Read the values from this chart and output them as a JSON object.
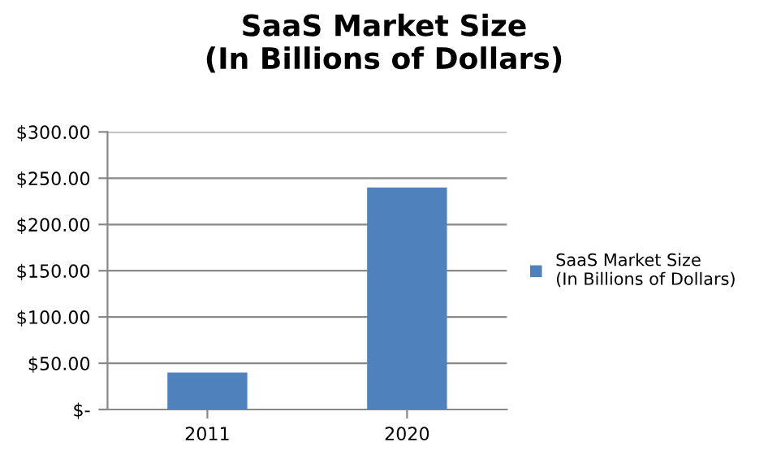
{
  "chart_data": {
    "type": "bar",
    "title": "SaaS Market Size\n(In Billions of Dollars)",
    "categories": [
      "2011",
      "2020"
    ],
    "series": [
      {
        "name": "SaaS Market Size\n(In Billions of Dollars)",
        "color": "#4f81bd",
        "values": [
          40,
          240
        ]
      }
    ],
    "ylim": [
      0,
      300
    ],
    "yticks": [
      {
        "value": 0,
        "label": "$-"
      },
      {
        "value": 50,
        "label": "$50.00"
      },
      {
        "value": 100,
        "label": "$100.00"
      },
      {
        "value": 150,
        "label": "$150.00"
      },
      {
        "value": 200,
        "label": "$200.00"
      },
      {
        "value": 250,
        "label": "$250.00"
      },
      {
        "value": 300,
        "label": "$300.00"
      }
    ],
    "grid": "y",
    "legend": "right"
  }
}
